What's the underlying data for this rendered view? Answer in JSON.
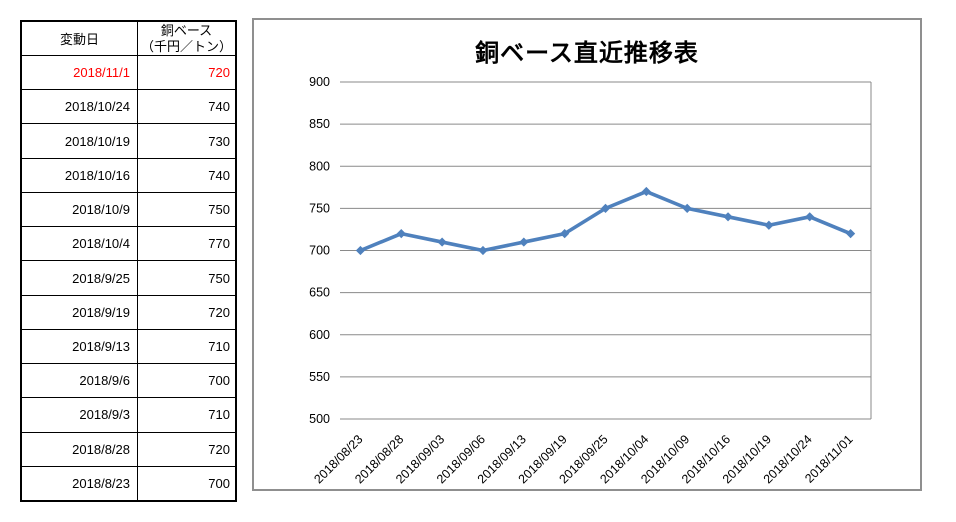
{
  "table": {
    "headers": {
      "date": "変動日",
      "value_line1": "銅ベース",
      "value_line2": "（千円／トン）"
    },
    "rows": [
      {
        "date": "2018/11/1",
        "value": "720",
        "highlight": true
      },
      {
        "date": "2018/10/24",
        "value": "740",
        "highlight": false
      },
      {
        "date": "2018/10/19",
        "value": "730",
        "highlight": false
      },
      {
        "date": "2018/10/16",
        "value": "740",
        "highlight": false
      },
      {
        "date": "2018/10/9",
        "value": "750",
        "highlight": false
      },
      {
        "date": "2018/10/4",
        "value": "770",
        "highlight": false
      },
      {
        "date": "2018/9/25",
        "value": "750",
        "highlight": false
      },
      {
        "date": "2018/9/19",
        "value": "720",
        "highlight": false
      },
      {
        "date": "2018/9/13",
        "value": "710",
        "highlight": false
      },
      {
        "date": "2018/9/6",
        "value": "700",
        "highlight": false
      },
      {
        "date": "2018/9/3",
        "value": "710",
        "highlight": false
      },
      {
        "date": "2018/8/28",
        "value": "720",
        "highlight": false
      },
      {
        "date": "2018/8/23",
        "value": "700",
        "highlight": false
      }
    ]
  },
  "chart_data": {
    "type": "line",
    "title": "銅ベース直近推移表",
    "categories": [
      "2018/08/23",
      "2018/08/28",
      "2018/09/03",
      "2018/09/06",
      "2018/09/13",
      "2018/09/19",
      "2018/09/25",
      "2018/10/04",
      "2018/10/09",
      "2018/10/16",
      "2018/10/19",
      "2018/10/24",
      "2018/11/01"
    ],
    "values": [
      700,
      720,
      710,
      700,
      710,
      720,
      750,
      770,
      750,
      740,
      730,
      740,
      720
    ],
    "xlabel": "",
    "ylabel": "",
    "ylim": [
      500,
      900
    ],
    "yticks": [
      900,
      850,
      800,
      750,
      700,
      650,
      600,
      550,
      500
    ],
    "grid": true,
    "legend": "none",
    "marker": "diamond"
  },
  "colors": {
    "line": "#4F81BD",
    "gridline": "#8a8a8a",
    "highlight_text": "#FF0000",
    "chart_border": "#8f8f8f",
    "table_border": "#000000",
    "tick_text": "#000000"
  }
}
